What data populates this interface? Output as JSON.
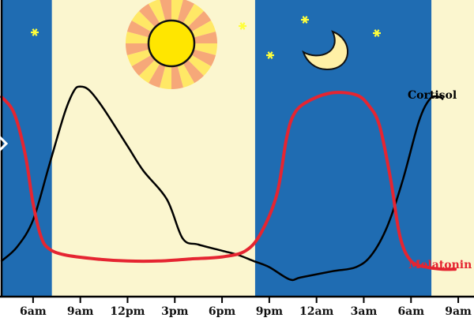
{
  "chart_data": {
    "type": "line",
    "title": "",
    "xlabel": "",
    "ylabel": "",
    "x_axis": {
      "unit": "hour of day, continuous from 4am to 10am next day",
      "range": [
        4,
        34
      ],
      "ticks": [
        {
          "x": 6,
          "label": "6am"
        },
        {
          "x": 9,
          "label": "9am"
        },
        {
          "x": 12,
          "label": "12pm"
        },
        {
          "x": 15,
          "label": "3pm"
        },
        {
          "x": 18,
          "label": "6pm"
        },
        {
          "x": 21,
          "label": "9pm"
        },
        {
          "x": 24,
          "label": "12am"
        },
        {
          "x": 27,
          "label": "3am"
        },
        {
          "x": 30,
          "label": "6am"
        },
        {
          "x": 33,
          "label": "9am"
        }
      ]
    },
    "y_axis": {
      "range": [
        0,
        100
      ],
      "ticks_shown": false
    },
    "grid": false,
    "background_bands": [
      {
        "from": 4,
        "to": 7.2,
        "phase": "night",
        "color": "#1f6cb2"
      },
      {
        "from": 7.2,
        "to": 20.1,
        "phase": "day",
        "color": "#fbf6cf"
      },
      {
        "from": 20.1,
        "to": 31.3,
        "phase": "night",
        "color": "#1f6cb2"
      },
      {
        "from": 31.3,
        "to": 34,
        "phase": "day",
        "color": "#fbf6cf"
      }
    ],
    "series": [
      {
        "name": "Cortisol",
        "color": "#000000",
        "points": [
          [
            4.0,
            12
          ],
          [
            5.0,
            19
          ],
          [
            6.0,
            32
          ],
          [
            7.0,
            58
          ],
          [
            8.0,
            84
          ],
          [
            8.6,
            95
          ],
          [
            9.0,
            97
          ],
          [
            9.6,
            95
          ],
          [
            10.5,
            86
          ],
          [
            12.0,
            68
          ],
          [
            13.0,
            56
          ],
          [
            14.5,
            42
          ],
          [
            15.5,
            23
          ],
          [
            16.5,
            20
          ],
          [
            18.0,
            17
          ],
          [
            19.0,
            15
          ],
          [
            20.0,
            12
          ],
          [
            21.0,
            9
          ],
          [
            22.3,
            3
          ],
          [
            23.0,
            4
          ],
          [
            25.0,
            7
          ],
          [
            26.5,
            9
          ],
          [
            27.5,
            15
          ],
          [
            28.5,
            29
          ],
          [
            29.5,
            52
          ],
          [
            30.5,
            80
          ],
          [
            31.2,
            91
          ],
          [
            31.8,
            92
          ],
          [
            32.0,
            91
          ]
        ]
      },
      {
        "name": "Melatonin",
        "color": "#e52531",
        "points": [
          [
            4.0,
            92
          ],
          [
            4.8,
            84
          ],
          [
            5.5,
            64
          ],
          [
            6.0,
            40
          ],
          [
            6.5,
            24
          ],
          [
            7.0,
            18
          ],
          [
            8.0,
            15
          ],
          [
            10.0,
            13
          ],
          [
            12.0,
            12
          ],
          [
            14.0,
            12
          ],
          [
            16.0,
            13
          ],
          [
            18.0,
            14
          ],
          [
            19.5,
            17
          ],
          [
            20.5,
            26
          ],
          [
            21.5,
            45
          ],
          [
            22.1,
            72
          ],
          [
            22.6,
            84
          ],
          [
            23.5,
            90
          ],
          [
            25.0,
            94
          ],
          [
            26.5,
            93
          ],
          [
            27.3,
            88
          ],
          [
            28.0,
            78
          ],
          [
            28.7,
            52
          ],
          [
            29.3,
            24
          ],
          [
            30.0,
            12
          ],
          [
            31.0,
            9
          ],
          [
            32.0,
            8
          ],
          [
            32.8,
            8
          ]
        ]
      }
    ],
    "annotations": [
      "sun-illustration",
      "crescent-moon-illustration",
      "stars-illustration"
    ]
  }
}
